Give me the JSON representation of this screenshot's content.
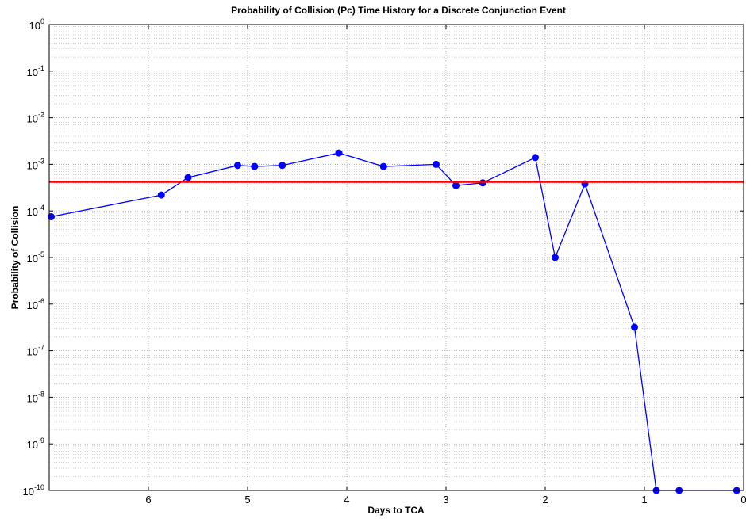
{
  "chart_data": {
    "type": "line",
    "title": "Probability of Collision (Pc) Time History for a Discrete Conjunction Event",
    "xlabel": "Days to TCA",
    "ylabel": "Probability of Collision",
    "x_reversed": true,
    "xlim": [
      7,
      0
    ],
    "ylim": [
      1e-10,
      1
    ],
    "yscale": "log",
    "grid": true,
    "x_ticks": [
      6,
      5,
      4,
      3,
      2,
      1,
      0
    ],
    "x_tick_labels": [
      "6",
      "5",
      "4",
      "3",
      "2",
      "1",
      "0"
    ],
    "y_ticks": [
      {
        "value": 1,
        "base": "10",
        "exp": "0"
      },
      {
        "value": 0.1,
        "base": "10",
        "exp": "-1"
      },
      {
        "value": 0.01,
        "base": "10",
        "exp": "-2"
      },
      {
        "value": 0.001,
        "base": "10",
        "exp": "-3"
      },
      {
        "value": 0.0001,
        "base": "10",
        "exp": "-4"
      },
      {
        "value": 1e-05,
        "base": "10",
        "exp": "-5"
      },
      {
        "value": 1e-06,
        "base": "10",
        "exp": "-6"
      },
      {
        "value": 1e-07,
        "base": "10",
        "exp": "-7"
      },
      {
        "value": 1e-08,
        "base": "10",
        "exp": "-8"
      },
      {
        "value": 1e-09,
        "base": "10",
        "exp": "-9"
      },
      {
        "value": 1e-10,
        "base": "10",
        "exp": "-10"
      }
    ],
    "series": [
      {
        "color": "#0000ff",
        "marker": "circle",
        "x": [
          6.98,
          5.87,
          5.6,
          5.1,
          4.93,
          4.65,
          4.08,
          3.63,
          3.1,
          2.9,
          2.63,
          2.1,
          1.9,
          1.6,
          1.1,
          0.88,
          0.65,
          0.07
        ],
        "y": [
          7.5e-05,
          0.00022,
          0.00052,
          0.00095,
          0.0009,
          0.00095,
          0.00175,
          0.0009,
          0.001,
          0.00035,
          0.0004,
          0.0014,
          1e-05,
          0.00038,
          3.2e-07,
          1e-10,
          1e-10,
          1e-10
        ]
      },
      {
        "color": "#ff0000",
        "type": "hline",
        "y": 0.00042
      }
    ]
  }
}
